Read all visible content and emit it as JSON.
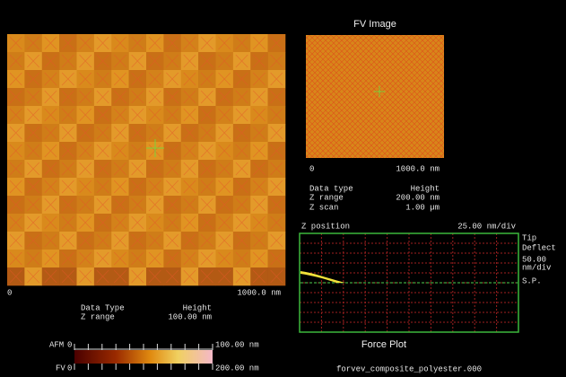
{
  "left_image": {
    "scale_start": "0",
    "scale_end": "1000.0 nm",
    "info": [
      [
        "Data Type",
        "Height"
      ],
      [
        "Z range",
        "100.00 nm"
      ]
    ]
  },
  "colorbar": {
    "afm_label": "AFM",
    "afm_min": "0",
    "afm_max": "100.00 nm",
    "fv_label": "FV",
    "fv_min": "0",
    "fv_max": "200.00 nm"
  },
  "fv_image": {
    "title": "FV Image",
    "scale_start": "0",
    "scale_end": "1000.0 nm",
    "info": [
      [
        "Data type",
        "Height"
      ],
      [
        "Z range",
        "200.00 nm"
      ],
      [
        "Z scan",
        "1.00 µm"
      ]
    ]
  },
  "force_plot": {
    "title": "Force Plot",
    "x_label": "Z position",
    "x_scale": "25.00 nm/div",
    "y_label": [
      "Tip",
      "Deflect"
    ],
    "y_scale": [
      "50.00",
      "nm/div"
    ],
    "setpoint": "S.P."
  },
  "filename": "forvev_composite_polyester.000"
}
